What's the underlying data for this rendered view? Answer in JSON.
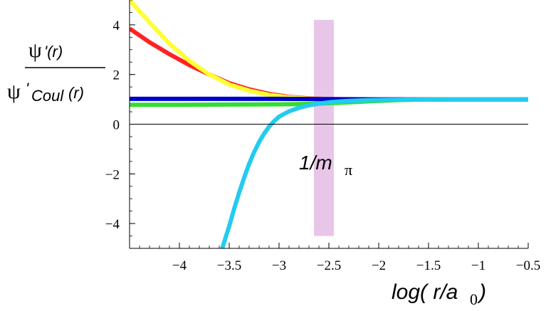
{
  "chart_data": {
    "type": "line",
    "xlim": [
      -4.5,
      -0.5
    ],
    "ylim": [
      -5,
      5
    ],
    "x_ticks": [
      -4,
      -3.5,
      -3,
      -2.5,
      -2,
      -1.5,
      -1,
      -0.5
    ],
    "y_ticks": [
      -4,
      -2,
      0,
      2,
      4
    ],
    "x_tick_labels": [
      "−4",
      "−3.5",
      "−3",
      "−2.5",
      "−2",
      "−1.5",
      "−1",
      "−0.5"
    ],
    "y_tick_labels": [
      "−4",
      "−2",
      "0",
      "2",
      "4"
    ],
    "ylabel": {
      "numerator_psi": "ψ",
      "numerator_arg": "'(r)",
      "denominator_psi": "ψ",
      "denominator_prime": "'",
      "denominator_sub": "Coul",
      "denominator_arg": "(r)"
    },
    "xlabel": {
      "pre": "log( r/a",
      "sub": "0",
      "post": ")"
    },
    "annotation": {
      "text": "1/m",
      "sub": "π"
    },
    "band": {
      "x_range": [
        -2.65,
        -2.45
      ],
      "y_range": [
        -4.5,
        4.2
      ],
      "color": "#e8c6e8"
    },
    "zero_line": true,
    "grid": false,
    "series": [
      {
        "color": "#ff2222",
        "x": [
          -4.5,
          -4.3,
          -4.1,
          -3.9,
          -3.7,
          -3.5,
          -3.3,
          -3.1,
          -2.9,
          -2.7,
          -2.5,
          -2.3,
          -2.1,
          -1.9,
          -1.7,
          -1.5,
          -1.3,
          -1.1,
          -0.9,
          -0.7,
          -0.5
        ],
        "y": [
          3.85,
          3.3,
          2.82,
          2.38,
          2.0,
          1.65,
          1.4,
          1.22,
          1.1,
          1.04,
          1.01,
          1.0,
          1.0,
          1.0,
          1.0,
          1.0,
          1.0,
          1.0,
          1.0,
          1.0,
          1.0
        ]
      },
      {
        "color": "#ffff33",
        "x": [
          -4.5,
          -4.3,
          -4.1,
          -3.9,
          -3.7,
          -3.5,
          -3.3,
          -3.1,
          -2.9,
          -2.7,
          -2.5,
          -2.3,
          -2.1,
          -1.9,
          -1.7,
          -1.5,
          -1.3,
          -1.1,
          -0.9,
          -0.7,
          -0.5
        ],
        "y": [
          5.0,
          4.1,
          3.25,
          2.55,
          2.0,
          1.6,
          1.35,
          1.18,
          1.08,
          1.03,
          1.01,
          1.0,
          1.0,
          1.0,
          1.0,
          1.0,
          1.0,
          1.0,
          1.0,
          1.0,
          1.0
        ]
      },
      {
        "color": "#0000cc",
        "x": [
          -4.5,
          -4.0,
          -3.5,
          -3.0,
          -2.5,
          -2.0,
          -1.5,
          -1.0,
          -0.5
        ],
        "y": [
          1.02,
          1.02,
          1.02,
          1.02,
          1.01,
          1.0,
          1.0,
          1.0,
          1.0
        ]
      },
      {
        "color": "#33dd33",
        "x": [
          -4.5,
          -4.0,
          -3.5,
          -3.0,
          -2.8,
          -2.6,
          -2.4,
          -2.2,
          -2.0,
          -1.8,
          -1.6,
          -1.4,
          -1.2,
          -1.0,
          -0.5
        ],
        "y": [
          0.78,
          0.78,
          0.79,
          0.8,
          0.81,
          0.83,
          0.86,
          0.9,
          0.94,
          0.97,
          0.99,
          1.0,
          1.0,
          1.0,
          1.0
        ]
      },
      {
        "color": "#22ccee",
        "x": [
          -3.57,
          -3.5,
          -3.45,
          -3.4,
          -3.35,
          -3.3,
          -3.25,
          -3.2,
          -3.15,
          -3.1,
          -3.05,
          -3.0,
          -2.9,
          -2.8,
          -2.7,
          -2.6,
          -2.5,
          -2.4,
          -2.3,
          -2.2,
          -2.1,
          -2.0,
          -1.9,
          -1.8,
          -1.7,
          -1.6,
          -1.5,
          -1.4,
          -1.2,
          -1.0,
          -0.5
        ],
        "y": [
          -5.0,
          -4.1,
          -3.4,
          -2.75,
          -2.15,
          -1.6,
          -1.12,
          -0.72,
          -0.38,
          -0.1,
          0.12,
          0.3,
          0.52,
          0.66,
          0.76,
          0.83,
          0.88,
          0.915,
          0.94,
          0.955,
          0.967,
          0.975,
          0.982,
          0.987,
          0.991,
          0.994,
          0.996,
          0.998,
          1.0,
          1.0,
          1.0
        ]
      }
    ]
  }
}
